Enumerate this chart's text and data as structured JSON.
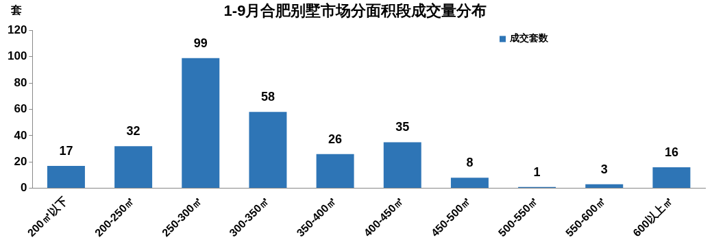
{
  "chart_data": {
    "type": "bar",
    "title": "1-9月合肥别墅市场分面积段成交量分布",
    "ylabel": "套",
    "categories": [
      "200㎡以下",
      "200-250㎡",
      "250-300㎡",
      "300-350㎡",
      "350-400㎡",
      "400-450㎡",
      "450-500㎡",
      "500-550㎡",
      "550-600㎡",
      "600以上㎡"
    ],
    "series": [
      {
        "name": "成交套数",
        "color": "#2e75b6",
        "values": [
          17,
          32,
          99,
          58,
          26,
          35,
          8,
          1,
          3,
          16
        ]
      }
    ],
    "ylim": [
      0,
      120
    ],
    "yticks": [
      0,
      20,
      40,
      60,
      80,
      100,
      120
    ],
    "grid": false,
    "legend": "top right",
    "data_labels": true
  }
}
